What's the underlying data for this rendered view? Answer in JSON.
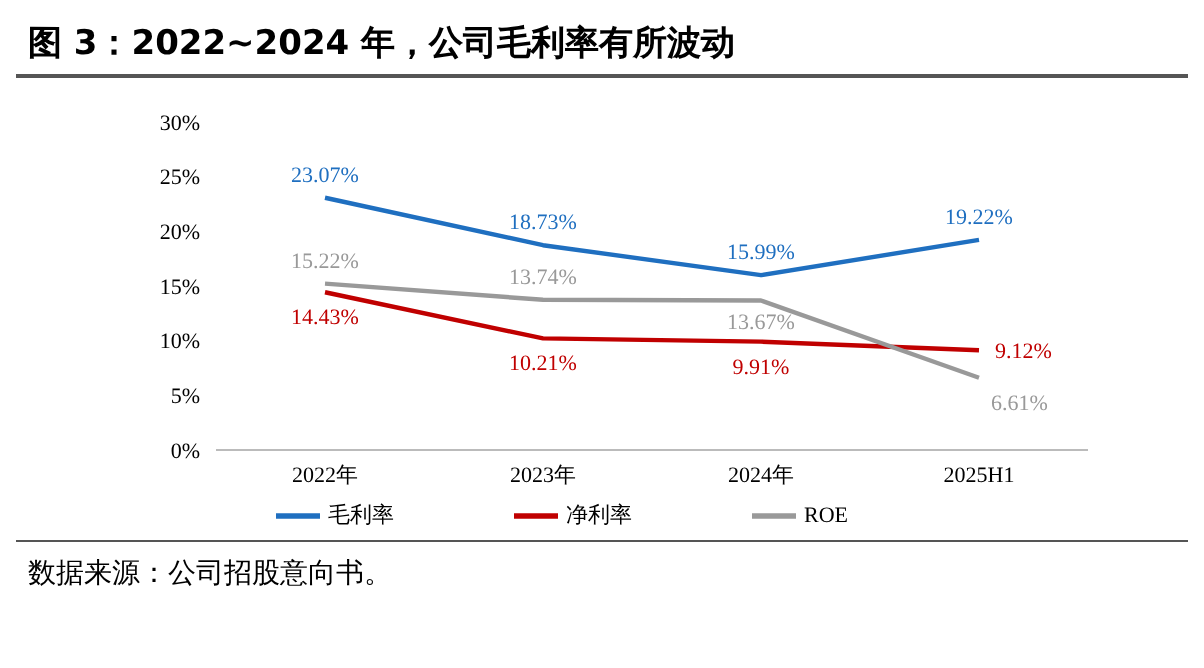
{
  "chart_data": {
    "type": "line",
    "title": "图 3：2022~2024 年，公司毛利率有所波动",
    "categories": [
      "2022年",
      "2023年",
      "2024年",
      "2025H1"
    ],
    "series": [
      {
        "name": "毛利率",
        "color": "#1f6fc0",
        "values": [
          23.07,
          18.73,
          15.99,
          19.22
        ],
        "value_labels": [
          "23.07%",
          "18.73%",
          "15.99%",
          "19.22%"
        ]
      },
      {
        "name": "净利率",
        "color": "#c00000",
        "values": [
          14.43,
          10.21,
          9.91,
          9.12
        ],
        "value_labels": [
          "14.43%",
          "10.21%",
          "9.91%",
          "9.12%"
        ]
      },
      {
        "name": "ROE",
        "color": "#999999",
        "values": [
          15.22,
          13.74,
          13.67,
          6.61
        ],
        "value_labels": [
          "15.22%",
          "13.74%",
          "13.67%",
          "6.61%"
        ]
      }
    ],
    "ylim": [
      0,
      30
    ],
    "yticks": [
      {
        "value": 0,
        "label": "0%"
      },
      {
        "value": 5,
        "label": "5%"
      },
      {
        "value": 10,
        "label": "10%"
      },
      {
        "value": 15,
        "label": "15%"
      },
      {
        "value": 20,
        "label": "20%"
      },
      {
        "value": 25,
        "label": "25%"
      },
      {
        "value": 30,
        "label": "30%"
      }
    ],
    "grid": false,
    "legend": "bottom",
    "marker": "none",
    "line_style": "solid",
    "annotations": [
      "数据来源：公司招股意向书。"
    ]
  }
}
